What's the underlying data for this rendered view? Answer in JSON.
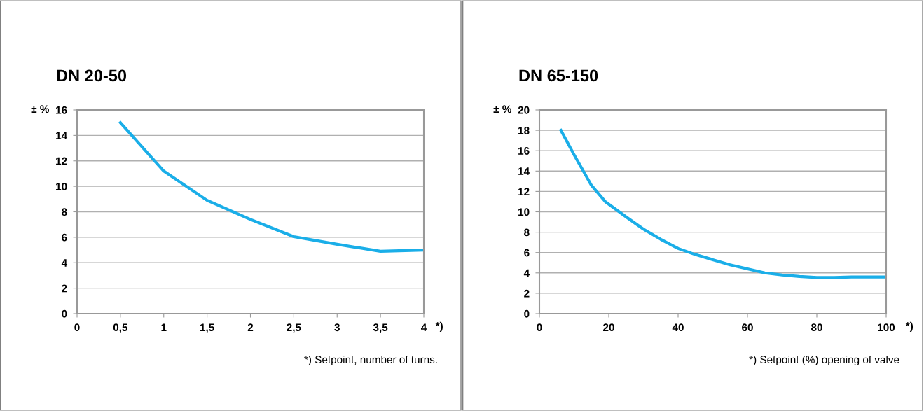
{
  "chart_data": [
    {
      "type": "line",
      "title": "DN 20-50",
      "ylabel": "± %",
      "xlabel": "*)",
      "annotations": [
        "*) Setpoint, number of turns."
      ],
      "x": [
        0.5,
        1,
        1.5,
        2,
        2.5,
        3,
        3.5,
        4
      ],
      "series": [
        {
          "color": "#1aaee8",
          "values": [
            15,
            11.2,
            8.9,
            7.4,
            6.05,
            5.45,
            4.9,
            5.0
          ]
        }
      ],
      "xlim": [
        0,
        4
      ],
      "xticks": [
        0,
        {
          "value": 0.5,
          "label": "0,5"
        },
        1,
        {
          "value": 1.5,
          "label": "1,5"
        },
        2,
        {
          "value": 2.5,
          "label": "2,5"
        },
        3,
        {
          "value": 3.5,
          "label": "3,5"
        },
        4
      ],
      "ylim": [
        0,
        16
      ],
      "yticks": [
        0,
        2,
        4,
        6,
        8,
        10,
        12,
        14,
        16
      ],
      "grid": "y",
      "legend": false,
      "marker": "none",
      "line_style": "solid"
    },
    {
      "type": "line",
      "title": "DN 65-150",
      "ylabel": "± %",
      "xlabel": "*)",
      "annotations": [
        "*) Setpoint (%) opening of valve"
      ],
      "x": [
        6.2,
        10,
        15,
        19,
        25,
        30,
        35,
        40,
        45,
        50,
        55,
        60,
        65,
        70,
        75,
        80,
        85,
        90,
        100
      ],
      "series": [
        {
          "color": "#1aaee8",
          "values": [
            18,
            15.6,
            12.6,
            11.0,
            9.5,
            8.3,
            7.3,
            6.4,
            5.8,
            5.3,
            4.8,
            4.4,
            4.0,
            3.8,
            3.65,
            3.55,
            3.55,
            3.6,
            3.6
          ]
        }
      ],
      "xlim": [
        0,
        100
      ],
      "xticks": [
        0,
        20,
        40,
        60,
        80,
        100
      ],
      "ylim": [
        0,
        20
      ],
      "yticks": [
        0,
        2,
        4,
        6,
        8,
        10,
        12,
        14,
        16,
        18,
        20
      ],
      "grid": "y",
      "legend": false,
      "marker": "none",
      "line_style": "solid"
    }
  ]
}
